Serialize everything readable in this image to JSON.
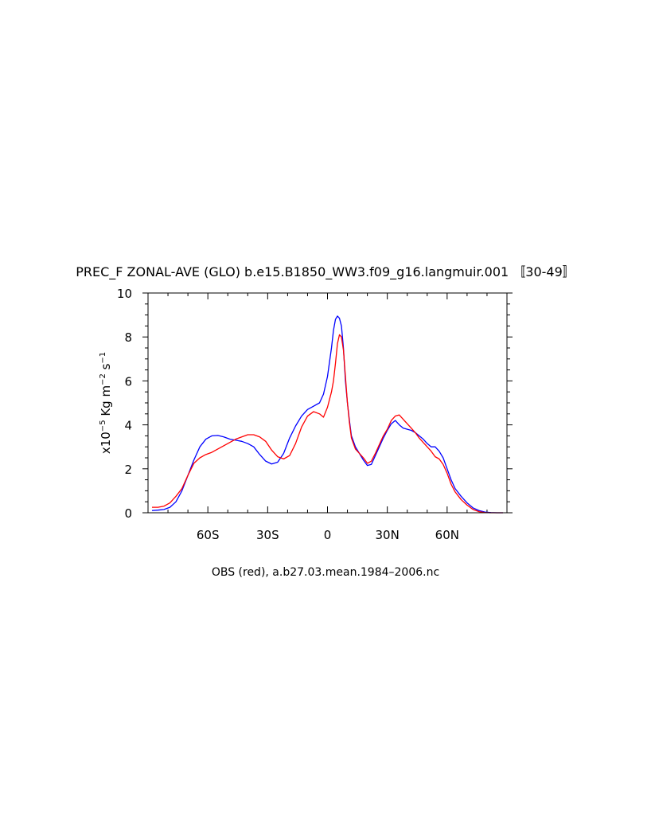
{
  "chart_data": {
    "type": "line",
    "title": "PREC_F ZONAL-AVE (GLO) b.e15.B1850_WW3.f09_g16.langmuir.001 〚30-49〛",
    "ylabel_parts": {
      "prefix": "x10",
      "exp": "−5",
      "mid": " Kg m",
      "exp2": "−2",
      "mid2": " s",
      "exp3": "−1"
    },
    "caption": "OBS (red), a.b27.03.mean.1984–2006.nc",
    "xlim": [
      -90,
      90
    ],
    "ylim": [
      0,
      10
    ],
    "x_ticks": [
      {
        "value": -60,
        "label": "60S"
      },
      {
        "value": -30,
        "label": "30S"
      },
      {
        "value": 0,
        "label": "0"
      },
      {
        "value": 30,
        "label": "30N"
      },
      {
        "value": 60,
        "label": "60N"
      }
    ],
    "y_ticks": [
      {
        "value": 0,
        "label": "0"
      },
      {
        "value": 2,
        "label": "2"
      },
      {
        "value": 4,
        "label": "4"
      },
      {
        "value": 6,
        "label": "6"
      },
      {
        "value": 8,
        "label": "8"
      },
      {
        "value": 10,
        "label": "10"
      }
    ],
    "series": [
      {
        "color": "#0000ff",
        "x": [
          -88,
          -85,
          -82,
          -79,
          -76,
          -73,
          -70,
          -67,
          -64,
          -61,
          -58,
          -55,
          -52,
          -49,
          -46,
          -43,
          -40,
          -37,
          -34,
          -31,
          -28,
          -25,
          -22,
          -19,
          -16,
          -13,
          -10,
          -7,
          -4,
          -2,
          0,
          2,
          3,
          4,
          5,
          6,
          7,
          8,
          9,
          10,
          11,
          12,
          14,
          16,
          18,
          20,
          22,
          24,
          26,
          28,
          30,
          32,
          34,
          36,
          38,
          40,
          42,
          44,
          46,
          48,
          50,
          52,
          54,
          56,
          58,
          60,
          62,
          64,
          67,
          70,
          73,
          76,
          79,
          82,
          85,
          88
        ],
        "y": [
          0.1,
          0.12,
          0.15,
          0.25,
          0.5,
          1.0,
          1.7,
          2.4,
          3.0,
          3.35,
          3.5,
          3.52,
          3.45,
          3.35,
          3.3,
          3.25,
          3.15,
          3.0,
          2.65,
          2.35,
          2.22,
          2.3,
          2.7,
          3.4,
          3.95,
          4.4,
          4.7,
          4.85,
          5.0,
          5.4,
          6.2,
          7.5,
          8.3,
          8.8,
          8.95,
          8.85,
          8.5,
          7.5,
          6.0,
          5.0,
          4.2,
          3.5,
          3.0,
          2.7,
          2.4,
          2.15,
          2.2,
          2.6,
          3.0,
          3.4,
          3.75,
          4.05,
          4.2,
          4.0,
          3.85,
          3.8,
          3.75,
          3.65,
          3.5,
          3.35,
          3.15,
          3.0,
          3.0,
          2.8,
          2.5,
          2.0,
          1.5,
          1.1,
          0.75,
          0.45,
          0.22,
          0.1,
          0.03,
          0.01,
          0.0,
          0.0
        ]
      },
      {
        "color": "#ff0000",
        "x": [
          -88,
          -85,
          -82,
          -79,
          -76,
          -73,
          -70,
          -67,
          -64,
          -61,
          -58,
          -55,
          -52,
          -49,
          -46,
          -43,
          -40,
          -37,
          -34,
          -31,
          -28,
          -25,
          -22,
          -19,
          -16,
          -13,
          -10,
          -7,
          -4,
          -2,
          0,
          2,
          3,
          4,
          5,
          6,
          7,
          8,
          9,
          10,
          11,
          12,
          14,
          16,
          18,
          20,
          22,
          24,
          26,
          28,
          30,
          32,
          34,
          36,
          38,
          40,
          42,
          44,
          46,
          48,
          50,
          52,
          54,
          56,
          58,
          60,
          62,
          64,
          67,
          70,
          73,
          76,
          79,
          82,
          85,
          88
        ],
        "y": [
          0.25,
          0.25,
          0.3,
          0.45,
          0.75,
          1.1,
          1.7,
          2.25,
          2.5,
          2.65,
          2.75,
          2.9,
          3.05,
          3.2,
          3.35,
          3.45,
          3.55,
          3.55,
          3.45,
          3.25,
          2.85,
          2.55,
          2.45,
          2.6,
          3.15,
          3.9,
          4.4,
          4.6,
          4.5,
          4.35,
          4.8,
          5.5,
          6.0,
          6.8,
          7.7,
          8.1,
          8.0,
          7.4,
          6.2,
          5.0,
          4.1,
          3.4,
          2.9,
          2.7,
          2.5,
          2.25,
          2.35,
          2.7,
          3.1,
          3.5,
          3.8,
          4.2,
          4.4,
          4.45,
          4.25,
          4.05,
          3.85,
          3.65,
          3.4,
          3.2,
          3.0,
          2.8,
          2.55,
          2.45,
          2.2,
          1.8,
          1.3,
          0.95,
          0.6,
          0.35,
          0.15,
          0.05,
          0.01,
          0.0,
          0.0,
          0.0
        ]
      }
    ]
  }
}
